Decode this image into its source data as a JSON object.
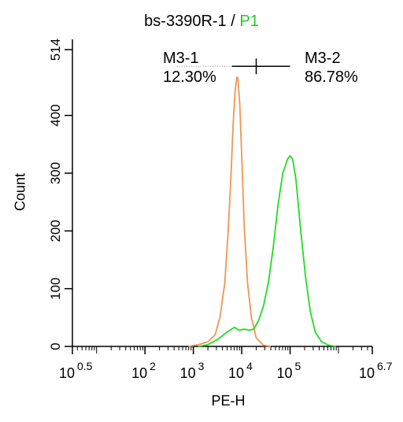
{
  "title": {
    "main": "bs-3390R-1",
    "sep": " / ",
    "gate": "P1",
    "gate_color": "#22cc22"
  },
  "chart_data": {
    "type": "line",
    "xlabel": "PE-H",
    "ylabel": "Count",
    "x_scale": "log10",
    "xlim": [
      0.5,
      6.7
    ],
    "ylim": [
      0,
      514
    ],
    "x_ticks": [
      {
        "exp": 0.5,
        "base": "10",
        "sup": "0.5"
      },
      {
        "exp": 2,
        "base": "10",
        "sup": "2"
      },
      {
        "exp": 3,
        "base": "10",
        "sup": "3"
      },
      {
        "exp": 4,
        "base": "10",
        "sup": "4"
      },
      {
        "exp": 5,
        "base": "10",
        "sup": "5"
      },
      {
        "exp": 6.7,
        "base": "10",
        "sup": "6.7"
      }
    ],
    "y_ticks": [
      0,
      100,
      200,
      300,
      400,
      514
    ],
    "grid": false,
    "series": [
      {
        "color": "#f29650",
        "points": [
          [
            2.9,
            0
          ],
          [
            3.1,
            3
          ],
          [
            3.3,
            8
          ],
          [
            3.45,
            20
          ],
          [
            3.55,
            50
          ],
          [
            3.65,
            110
          ],
          [
            3.72,
            200
          ],
          [
            3.78,
            300
          ],
          [
            3.82,
            380
          ],
          [
            3.86,
            440
          ],
          [
            3.9,
            466
          ],
          [
            3.92,
            465
          ],
          [
            3.96,
            420
          ],
          [
            4.0,
            330
          ],
          [
            4.05,
            210
          ],
          [
            4.12,
            110
          ],
          [
            4.2,
            50
          ],
          [
            4.3,
            15
          ],
          [
            4.45,
            2
          ],
          [
            4.6,
            0
          ]
        ]
      },
      {
        "color": "#22dd22",
        "points": [
          [
            3.1,
            0
          ],
          [
            3.3,
            3
          ],
          [
            3.5,
            12
          ],
          [
            3.7,
            25
          ],
          [
            3.85,
            33
          ],
          [
            3.95,
            28
          ],
          [
            4.05,
            30
          ],
          [
            4.15,
            28
          ],
          [
            4.25,
            30
          ],
          [
            4.35,
            45
          ],
          [
            4.45,
            70
          ],
          [
            4.55,
            110
          ],
          [
            4.65,
            170
          ],
          [
            4.75,
            245
          ],
          [
            4.85,
            300
          ],
          [
            4.95,
            325
          ],
          [
            5.0,
            330
          ],
          [
            5.05,
            325
          ],
          [
            5.12,
            290
          ],
          [
            5.22,
            200
          ],
          [
            5.32,
            120
          ],
          [
            5.42,
            60
          ],
          [
            5.52,
            25
          ],
          [
            5.65,
            8
          ],
          [
            5.8,
            2
          ],
          [
            5.95,
            0
          ]
        ]
      }
    ],
    "markers": [
      {
        "name": "M3-1",
        "percent": "12.30%"
      },
      {
        "name": "M3-2",
        "percent": "86.78%"
      }
    ],
    "marker_bar": {
      "y": 485,
      "x_start": 3.8,
      "x_divider": 4.3,
      "x_end": 5.0
    }
  }
}
